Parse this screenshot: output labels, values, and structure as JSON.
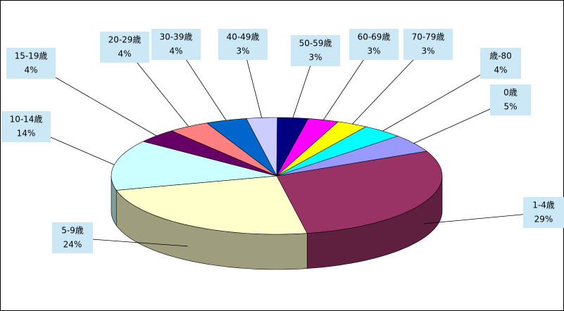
{
  "chart_data": {
    "type": "pie",
    "categories": [
      "0歳",
      "1-4歳",
      "5-9歳",
      "10-14歳",
      "15-19歳",
      "20-29歳",
      "30-39歳",
      "40-49歳",
      "50-59歳",
      "60-69歳",
      "70-79歳",
      "歳-80"
    ],
    "values": [
      5,
      29,
      24,
      14,
      4,
      4,
      4,
      3,
      3,
      3,
      3,
      4
    ],
    "value_labels": [
      "5%",
      "29%",
      "24%",
      "14%",
      "4%",
      "4%",
      "4%",
      "3%",
      "3%",
      "3%",
      "3%",
      "4%"
    ],
    "colors": [
      "#9999ff",
      "#993366",
      "#ffffcc",
      "#ccffff",
      "#660066",
      "#ff8080",
      "#0066cc",
      "#ccccff",
      "#000080",
      "#ff00ff",
      "#ffff00",
      "#00ffff"
    ]
  }
}
